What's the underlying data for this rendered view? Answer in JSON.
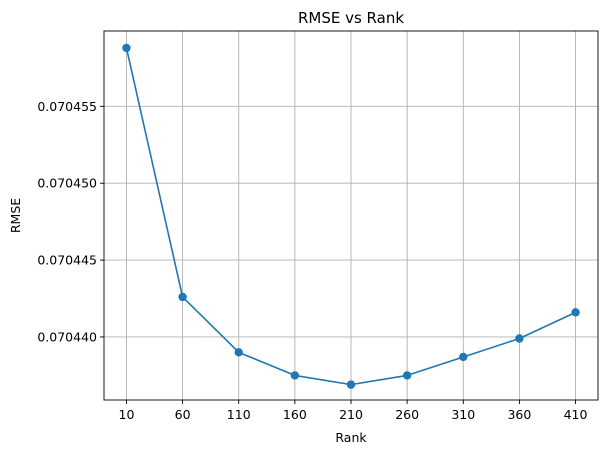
{
  "chart_data": {
    "type": "line",
    "title": "RMSE vs Rank",
    "xlabel": "Rank",
    "ylabel": "RMSE",
    "x": [
      10,
      60,
      110,
      160,
      210,
      260,
      310,
      360,
      410
    ],
    "x_ticks": [
      "10",
      "60",
      "110",
      "160",
      "210",
      "260",
      "310",
      "360",
      "410"
    ],
    "y_ticks": [
      "0.070440",
      "0.070445",
      "0.070450",
      "0.070455"
    ],
    "y_tick_values": [
      0.07044,
      0.070445,
      0.07045,
      0.070455
    ],
    "series": [
      {
        "values": [
          0.0704588,
          0.0704426,
          0.070439,
          0.0704375,
          0.0704369,
          0.0704375,
          0.0704387,
          0.0704399,
          0.0704416
        ],
        "color": "#1f77b4"
      }
    ],
    "xlim": [
      -10,
      430
    ],
    "ylim": [
      0.0704359,
      0.0704599
    ],
    "grid": true,
    "legend": false
  }
}
